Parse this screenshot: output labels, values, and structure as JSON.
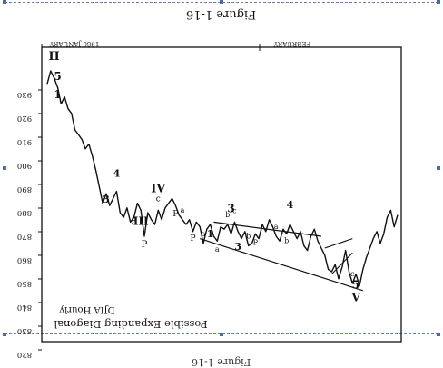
{
  "caption_top": "Figure 1-16",
  "caption_bottom": "Figure 1-16",
  "chart_data": {
    "type": "line",
    "title": "Possible Expanding Diagonal",
    "subtitle": "DJIA Hourly",
    "month_labels": [
      "1980 JANUARY",
      "FEBRUARY"
    ],
    "y_tick_labels": [
      "930",
      "920",
      "910",
      "900",
      "890",
      "880",
      "870",
      "860",
      "850",
      "840",
      "830",
      "820",
      "810"
    ],
    "series": [
      {
        "values": [
          914.5,
          920,
          917,
          913,
          906,
          909,
          904,
          902,
          895,
          893,
          891,
          887,
          889,
          884,
          878,
          871,
          864,
          868,
          863,
          866,
          869,
          860,
          858,
          862,
          856,
          858,
          864,
          861,
          850,
          860,
          857,
          855,
          861,
          857,
          862,
          864,
          866,
          863,
          859,
          857,
          855,
          857,
          852,
          856,
          854,
          847,
          853,
          855,
          850,
          848,
          854,
          853,
          855,
          851,
          856,
          852,
          849,
          852,
          846,
          847,
          851,
          849,
          855,
          852,
          857,
          854,
          850,
          848,
          853,
          851,
          855,
          852,
          849,
          852,
          846,
          844,
          850,
          853,
          848,
          845,
          842,
          836,
          835,
          838,
          832,
          837,
          844,
          835,
          830,
          834,
          829,
          836,
          841,
          845,
          849,
          852,
          847,
          851,
          858,
          861,
          854,
          859
        ]
      }
    ],
    "wave_labels": [
      "II",
      "5",
      "1",
      "3",
      "4",
      "5",
      "III",
      "P",
      "IV",
      "c",
      "P",
      "a",
      "P",
      "a",
      "1",
      "3",
      "a",
      "b",
      "c",
      "b",
      "P",
      "3",
      "4",
      "a",
      "b",
      "c",
      "5",
      "V"
    ],
    "trendlines": [
      {
        "from": {
          "i": 48,
          "v": 856
        },
        "to": {
          "i": 79,
          "v": 850
        }
      },
      {
        "from": {
          "i": 44,
          "v": 849
        },
        "to": {
          "i": 91,
          "v": 827
        }
      }
    ]
  }
}
